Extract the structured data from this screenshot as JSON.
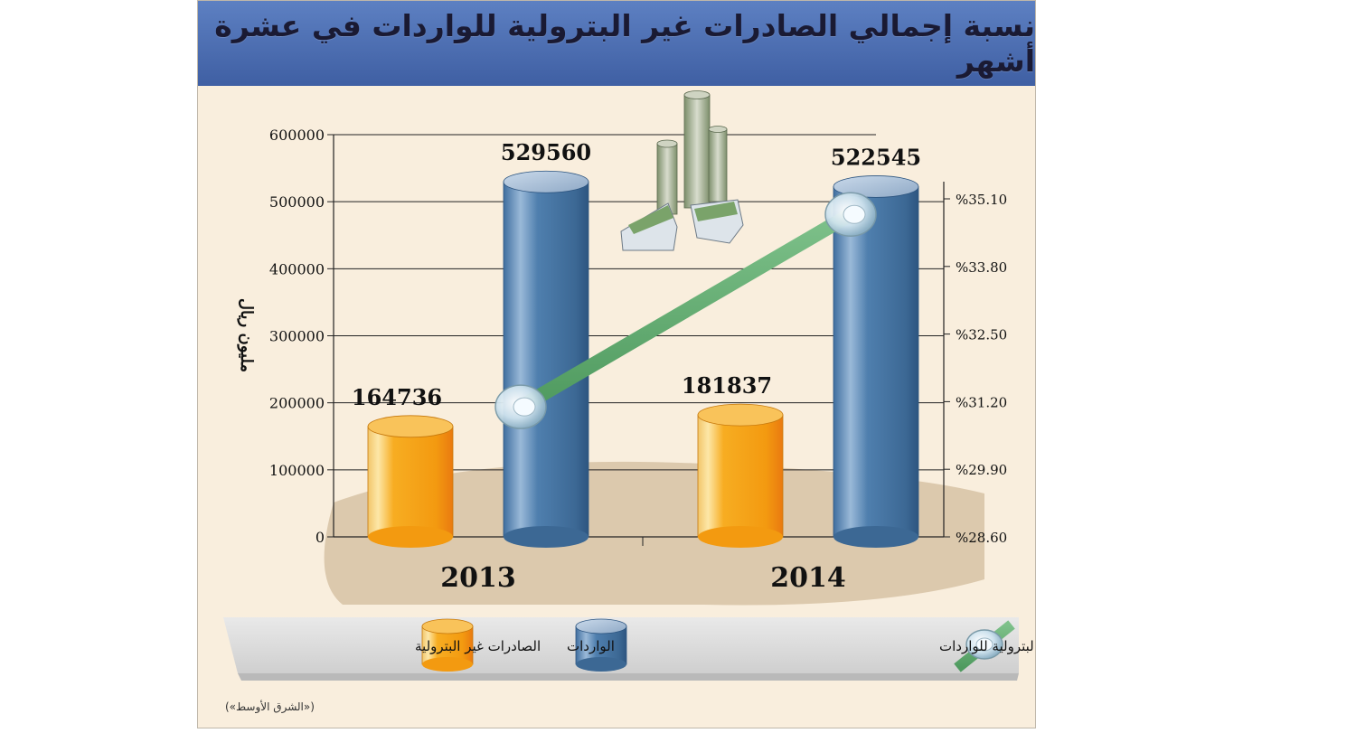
{
  "title": "نسبة إجمالي الصادرات غير البترولية للواردات في عشرة أشهر",
  "source": "(«الشرق الأوسط»)",
  "chart_data": {
    "type": "bar",
    "categories": [
      "2013",
      "2014"
    ],
    "series": [
      {
        "name": "الصادرات غير البترولية",
        "values": [
          164736,
          181837
        ],
        "labels": [
          "164736",
          "181837"
        ],
        "color": "#f5a212"
      },
      {
        "name": "الواردات",
        "values": [
          529560,
          522545
        ],
        "labels": [
          "529560",
          "522545"
        ],
        "color": "#4a78a8"
      }
    ],
    "ratio_series": {
      "name": "نسبة الصادرات غير البترولية للواردات",
      "values": [
        31.1,
        34.8
      ],
      "color": "#5aa86a"
    },
    "ylabel": "مليون ريال",
    "ylim": [
      0,
      600000
    ],
    "y_ticks": [
      "600000",
      "500000",
      "400000",
      "300000",
      "200000",
      "100000",
      "0"
    ],
    "y2lim": [
      28.6,
      35.1
    ],
    "y2_ticks": [
      "%35.10",
      "%33.80",
      "%32.50",
      "%31.20",
      "%29.90",
      "%28.60"
    ],
    "grid": true,
    "legend_position": "bottom"
  }
}
